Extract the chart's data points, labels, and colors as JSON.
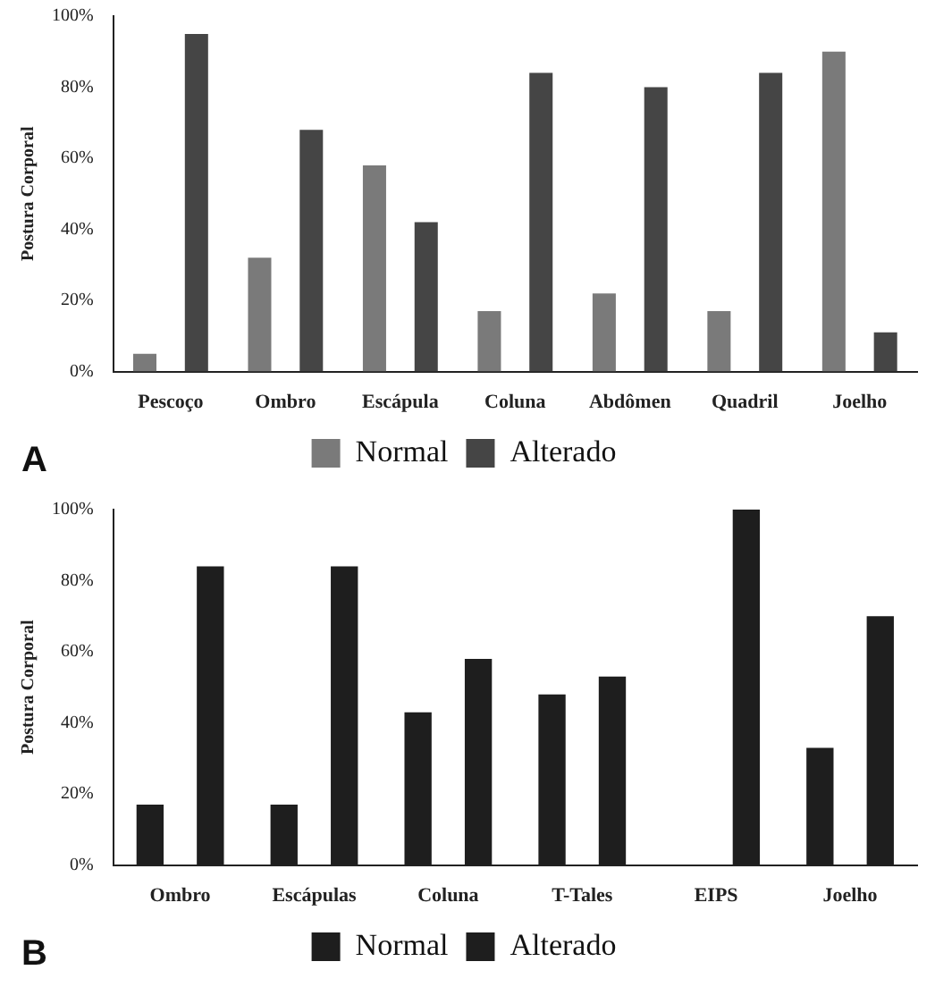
{
  "chart_data": [
    {
      "type": "bar",
      "ylabel": "Postura Corporal",
      "categories": [
        "Pescoço",
        "Ombro",
        "Escápula",
        "Coluna",
        "Abdômen",
        "Quadril",
        "Joelho"
      ],
      "series": [
        {
          "name": "Normal",
          "color": "#7a7a7a",
          "values": [
            5,
            32,
            58,
            17,
            22,
            17,
            90
          ]
        },
        {
          "name": "Alterado",
          "color": "#454545",
          "values": [
            95,
            68,
            42,
            84,
            80,
            84,
            11
          ]
        }
      ],
      "ylim": [
        0,
        100
      ],
      "yticks": [
        {
          "value": 0,
          "label": "0%"
        },
        {
          "value": 20,
          "label": "20%"
        },
        {
          "value": 40,
          "label": "40%"
        },
        {
          "value": 60,
          "label": "60%"
        },
        {
          "value": 80,
          "label": "80%"
        },
        {
          "value": 100,
          "label": "100%"
        }
      ],
      "grid": false,
      "legend": "bottom",
      "annotations": [
        "A"
      ]
    },
    {
      "type": "bar",
      "ylabel": "Postura Corporal",
      "categories": [
        "Ombro",
        "Escápulas",
        "Coluna",
        "T-Tales",
        "EIPS",
        "Joelho"
      ],
      "series": [
        {
          "name": "Normal",
          "color": "#1e1e1e",
          "values": [
            17,
            17,
            43,
            48,
            0,
            33
          ]
        },
        {
          "name": "Alterado",
          "color": "#1e1e1e",
          "values": [
            84,
            84,
            58,
            53,
            100,
            70
          ]
        }
      ],
      "ylim": [
        0,
        100
      ],
      "yticks": [
        {
          "value": 0,
          "label": "0%"
        },
        {
          "value": 20,
          "label": "20%"
        },
        {
          "value": 40,
          "label": "40%"
        },
        {
          "value": 60,
          "label": "60%"
        },
        {
          "value": 80,
          "label": "80%"
        },
        {
          "value": 100,
          "label": "100%"
        }
      ],
      "grid": false,
      "legend": "bottom",
      "annotations": [
        "B"
      ]
    }
  ]
}
